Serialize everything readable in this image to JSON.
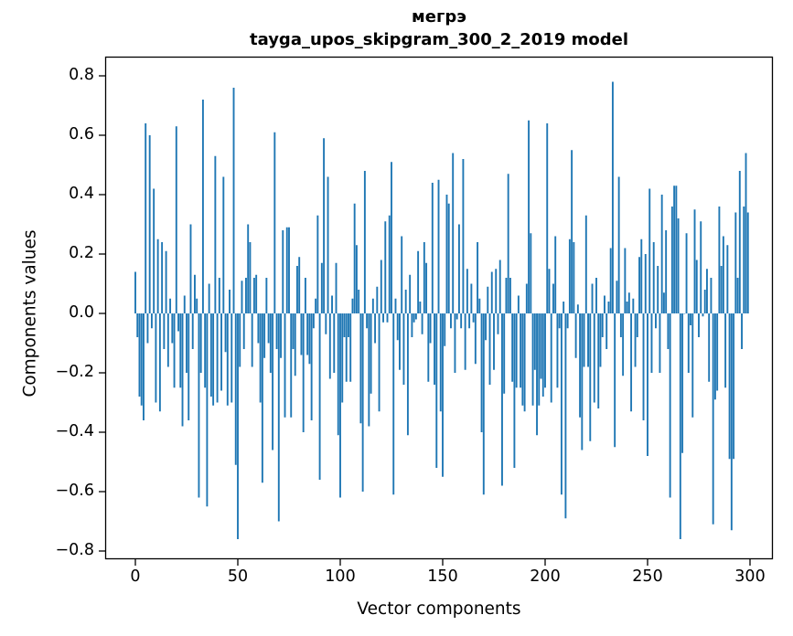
{
  "figure": {
    "title_line1": "мегрэ",
    "title_line2": "tayga_upos_skipgram_300_2_2019 model",
    "xlabel": "Vector components",
    "ylabel": "Components values"
  },
  "chart_data": {
    "type": "bar",
    "title": "мегрэ — tayga_upos_skipgram_300_2_2019 model",
    "xlabel": "Vector components",
    "ylabel": "Components values",
    "legend": "none",
    "grid": false,
    "bar_color": "#1f77b4",
    "axis_color": "#000000",
    "n_components": 300,
    "x_ticks": [
      0,
      50,
      100,
      150,
      200,
      250,
      300
    ],
    "y_ticks": [
      0.8,
      0.6,
      0.4,
      0.2,
      0.0,
      -0.2,
      -0.4,
      -0.6,
      -0.8
    ],
    "xlim": [
      -14.7,
      311.3
    ],
    "ylim": [
      -0.84,
      0.865
    ],
    "values": [
      0.14,
      -0.08,
      -0.28,
      -0.31,
      -0.36,
      0.64,
      -0.1,
      0.6,
      -0.05,
      0.42,
      -0.3,
      0.25,
      -0.33,
      0.24,
      -0.12,
      0.21,
      -0.18,
      0.05,
      -0.1,
      -0.25,
      0.63,
      -0.06,
      -0.25,
      -0.38,
      0.06,
      -0.2,
      -0.36,
      0.3,
      -0.12,
      0.13,
      0.05,
      -0.62,
      -0.2,
      0.72,
      -0.25,
      -0.65,
      0.1,
      -0.28,
      -0.31,
      0.53,
      -0.3,
      0.12,
      -0.26,
      0.46,
      -0.13,
      -0.31,
      0.08,
      -0.3,
      0.76,
      -0.51,
      -0.76,
      -0.18,
      0.11,
      -0.12,
      0.12,
      0.3,
      0.24,
      -0.18,
      0.12,
      0.13,
      -0.1,
      -0.3,
      -0.57,
      -0.15,
      0.12,
      -0.1,
      -0.2,
      -0.46,
      0.61,
      -0.12,
      -0.7,
      -0.15,
      0.28,
      -0.35,
      0.29,
      0.29,
      -0.35,
      -0.12,
      -0.21,
      0.16,
      0.19,
      -0.14,
      -0.4,
      0.12,
      -0.14,
      -0.17,
      -0.36,
      -0.05,
      0.05,
      0.33,
      -0.56,
      0.17,
      0.59,
      -0.07,
      0.46,
      -0.22,
      0.06,
      -0.2,
      0.17,
      -0.41,
      -0.62,
      -0.3,
      -0.08,
      -0.23,
      -0.08,
      -0.23,
      0.05,
      0.37,
      0.23,
      0.08,
      -0.37,
      -0.6,
      0.48,
      -0.05,
      -0.38,
      -0.27,
      0.05,
      -0.1,
      0.09,
      -0.33,
      0.18,
      -0.03,
      0.31,
      -0.03,
      0.33,
      0.51,
      -0.61,
      0.05,
      -0.09,
      -0.19,
      0.26,
      -0.24,
      0.08,
      -0.41,
      0.13,
      -0.08,
      -0.03,
      -0.02,
      0.21,
      0.04,
      -0.07,
      0.24,
      0.17,
      -0.23,
      -0.1,
      0.44,
      -0.24,
      -0.52,
      0.45,
      -0.33,
      -0.55,
      -0.11,
      0.4,
      0.37,
      -0.05,
      0.54,
      -0.2,
      -0.02,
      0.3,
      -0.05,
      0.52,
      -0.19,
      0.15,
      -0.05,
      0.1,
      -0.03,
      -0.17,
      0.24,
      0.05,
      -0.4,
      -0.61,
      -0.09,
      0.09,
      -0.24,
      0.14,
      -0.19,
      0.15,
      -0.07,
      0.18,
      -0.58,
      -0.27,
      0.12,
      0.47,
      0.12,
      -0.23,
      -0.52,
      -0.25,
      0.06,
      -0.25,
      -0.31,
      -0.33,
      0.1,
      0.65,
      0.27,
      -0.31,
      -0.19,
      -0.41,
      -0.31,
      -0.22,
      -0.28,
      -0.25,
      0.64,
      0.15,
      -0.3,
      0.1,
      0.26,
      -0.25,
      -0.05,
      -0.61,
      0.04,
      -0.69,
      -0.05,
      0.25,
      0.55,
      0.24,
      -0.15,
      0.03,
      -0.35,
      -0.46,
      -0.18,
      0.33,
      -0.18,
      -0.43,
      0.1,
      -0.3,
      0.12,
      -0.32,
      -0.18,
      -0.08,
      0.06,
      -0.12,
      0.04,
      0.22,
      0.78,
      -0.45,
      0.11,
      0.46,
      -0.08,
      -0.21,
      0.22,
      0.04,
      0.07,
      -0.33,
      0.05,
      -0.18,
      -0.08,
      0.19,
      0.25,
      -0.36,
      0.2,
      -0.48,
      0.42,
      -0.2,
      0.24,
      -0.05,
      0.16,
      -0.2,
      0.4,
      0.07,
      0.28,
      -0.12,
      -0.62,
      0.36,
      0.43,
      0.43,
      0.32,
      -0.76,
      -0.47,
      0.0,
      0.27,
      -0.2,
      -0.04,
      -0.35,
      0.35,
      0.18,
      -0.08,
      0.31,
      -0.01,
      0.08,
      0.15,
      -0.23,
      0.12,
      -0.71,
      -0.29,
      -0.26,
      0.36,
      0.16,
      0.26,
      -0.25,
      0.23,
      -0.49,
      -0.73,
      -0.49,
      0.34,
      0.12,
      0.48,
      -0.12,
      0.36,
      0.54,
      0.34
    ]
  }
}
